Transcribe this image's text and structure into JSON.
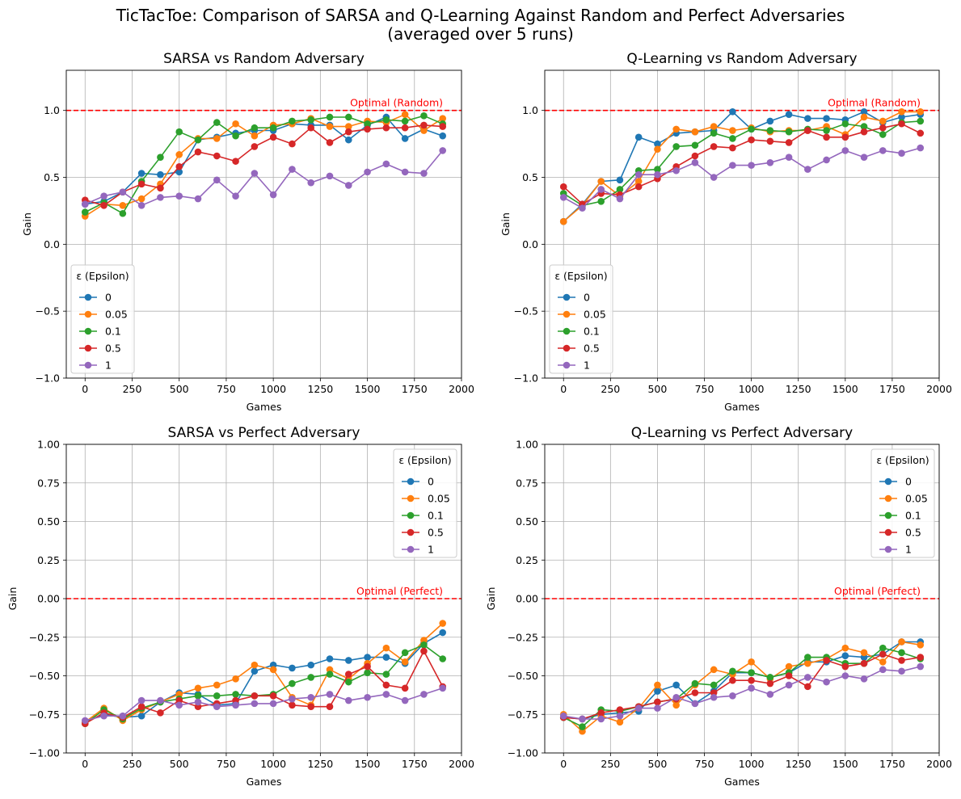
{
  "figure": {
    "title_line1": "TicTacToe: Comparison of SARSA and Q-Learning Against Random and Perfect Adversaries",
    "title_line2": "(averaged over 5 runs)"
  },
  "colors": {
    "series": [
      "#1f77b4",
      "#ff7f0e",
      "#2ca02c",
      "#d62728",
      "#9467bd"
    ],
    "optimal": "#ff0000",
    "grid": "#b0b0b0"
  },
  "chart_data": [
    {
      "type": "line",
      "title": "SARSA vs Random Adversary",
      "xlabel": "Games",
      "ylabel": "Gain",
      "xlim": [
        -100,
        2000
      ],
      "ylim": [
        -1.0,
        1.3
      ],
      "xticks": [
        0,
        250,
        500,
        750,
        1000,
        1250,
        1500,
        1750,
        2000
      ],
      "xtick_labels": [
        "0",
        "250",
        "500",
        "750",
        "1000",
        "1250",
        "1500",
        "1750",
        "2000"
      ],
      "yticks": [
        -1.0,
        -0.5,
        0.0,
        0.5,
        1.0
      ],
      "ytick_labels": [
        "−1.0",
        "−0.5",
        "0.0",
        "0.5",
        "1.0"
      ],
      "grid": true,
      "optimal_line": {
        "y": 1.0,
        "label": "Optimal (Random)"
      },
      "legend": {
        "title": "ε (Epsilon)",
        "placement": "lower-left"
      },
      "x": [
        0,
        100,
        200,
        300,
        400,
        500,
        600,
        700,
        800,
        900,
        1000,
        1100,
        1200,
        1300,
        1400,
        1500,
        1600,
        1700,
        1800,
        1900
      ],
      "series": [
        {
          "name": "0",
          "values": [
            0.3,
            0.32,
            0.39,
            0.53,
            0.52,
            0.54,
            0.78,
            0.8,
            0.83,
            0.85,
            0.85,
            0.9,
            0.89,
            0.89,
            0.78,
            0.89,
            0.95,
            0.79,
            0.86,
            0.81
          ]
        },
        {
          "name": "0.05",
          "values": [
            0.21,
            0.3,
            0.29,
            0.34,
            0.45,
            0.67,
            0.79,
            0.79,
            0.9,
            0.81,
            0.89,
            0.9,
            0.94,
            0.88,
            0.88,
            0.92,
            0.91,
            0.97,
            0.85,
            0.94
          ]
        },
        {
          "name": "0.1",
          "values": [
            0.24,
            0.31,
            0.23,
            0.47,
            0.65,
            0.84,
            0.78,
            0.91,
            0.81,
            0.87,
            0.87,
            0.92,
            0.93,
            0.95,
            0.95,
            0.9,
            0.93,
            0.92,
            0.96,
            0.9
          ]
        },
        {
          "name": "0.5",
          "values": [
            0.33,
            0.29,
            0.39,
            0.45,
            0.42,
            0.58,
            0.69,
            0.66,
            0.62,
            0.73,
            0.8,
            0.75,
            0.87,
            0.76,
            0.84,
            0.86,
            0.87,
            0.87,
            0.89,
            0.88
          ]
        },
        {
          "name": "1",
          "values": [
            0.3,
            0.36,
            0.39,
            0.29,
            0.35,
            0.36,
            0.34,
            0.48,
            0.36,
            0.53,
            0.37,
            0.56,
            0.46,
            0.51,
            0.44,
            0.54,
            0.6,
            0.54,
            0.53,
            0.7
          ]
        }
      ]
    },
    {
      "type": "line",
      "title": "Q-Learning vs Random Adversary",
      "xlabel": "Games",
      "ylabel": "Gain",
      "xlim": [
        -100,
        2000
      ],
      "ylim": [
        -1.0,
        1.3
      ],
      "xticks": [
        0,
        250,
        500,
        750,
        1000,
        1250,
        1500,
        1750,
        2000
      ],
      "xtick_labels": [
        "0",
        "250",
        "500",
        "750",
        "1000",
        "1250",
        "1500",
        "1750",
        "2000"
      ],
      "yticks": [
        -1.0,
        -0.5,
        0.0,
        0.5,
        1.0
      ],
      "ytick_labels": [
        "−1.0",
        "−0.5",
        "0.0",
        "0.5",
        "1.0"
      ],
      "grid": true,
      "optimal_line": {
        "y": 1.0,
        "label": "Optimal (Random)"
      },
      "legend": {
        "title": "ε (Epsilon)",
        "placement": "lower-left"
      },
      "x": [
        0,
        100,
        200,
        300,
        400,
        500,
        600,
        700,
        800,
        900,
        1000,
        1100,
        1200,
        1300,
        1400,
        1500,
        1600,
        1700,
        1800,
        1900
      ],
      "series": [
        {
          "name": "0",
          "values": [
            0.17,
            0.3,
            0.47,
            0.48,
            0.8,
            0.75,
            0.83,
            0.84,
            0.85,
            0.99,
            0.86,
            0.92,
            0.97,
            0.94,
            0.94,
            0.93,
            0.99,
            0.91,
            0.95,
            0.97
          ]
        },
        {
          "name": "0.05",
          "values": [
            0.17,
            0.29,
            0.47,
            0.36,
            0.47,
            0.71,
            0.86,
            0.84,
            0.88,
            0.85,
            0.87,
            0.84,
            0.85,
            0.85,
            0.88,
            0.82,
            0.95,
            0.92,
            0.99,
            0.99
          ]
        },
        {
          "name": "0.1",
          "values": [
            0.38,
            0.29,
            0.32,
            0.41,
            0.55,
            0.56,
            0.73,
            0.74,
            0.83,
            0.79,
            0.86,
            0.85,
            0.84,
            0.86,
            0.85,
            0.9,
            0.88,
            0.82,
            0.91,
            0.92
          ]
        },
        {
          "name": "0.5",
          "values": [
            0.43,
            0.3,
            0.38,
            0.37,
            0.43,
            0.49,
            0.58,
            0.66,
            0.73,
            0.72,
            0.78,
            0.77,
            0.76,
            0.85,
            0.8,
            0.8,
            0.84,
            0.87,
            0.9,
            0.83
          ]
        },
        {
          "name": "1",
          "values": [
            0.35,
            0.27,
            0.41,
            0.34,
            0.52,
            0.52,
            0.55,
            0.61,
            0.5,
            0.59,
            0.59,
            0.61,
            0.65,
            0.56,
            0.63,
            0.7,
            0.65,
            0.7,
            0.68,
            0.72
          ]
        }
      ]
    },
    {
      "type": "line",
      "title": "SARSA vs Perfect Adversary",
      "xlabel": "Games",
      "ylabel": "Gain",
      "xlim": [
        -100,
        2000
      ],
      "ylim": [
        -1.0,
        1.0
      ],
      "xticks": [
        0,
        250,
        500,
        750,
        1000,
        1250,
        1500,
        1750,
        2000
      ],
      "xtick_labels": [
        "0",
        "250",
        "500",
        "750",
        "1000",
        "1250",
        "1500",
        "1750",
        "2000"
      ],
      "yticks": [
        -1.0,
        -0.75,
        -0.5,
        -0.25,
        0.0,
        0.25,
        0.5,
        0.75,
        1.0
      ],
      "ytick_labels": [
        "−1.00",
        "−0.75",
        "−0.50",
        "−0.25",
        "0.00",
        "0.25",
        "0.50",
        "0.75",
        "1.00"
      ],
      "grid": true,
      "optimal_line": {
        "y": 0.0,
        "label": "Optimal (Perfect)"
      },
      "legend": {
        "title": "ε (Epsilon)",
        "placement": "upper-right"
      },
      "x": [
        0,
        100,
        200,
        300,
        400,
        500,
        600,
        700,
        800,
        900,
        1000,
        1100,
        1200,
        1300,
        1400,
        1500,
        1600,
        1700,
        1800,
        1900
      ],
      "series": [
        {
          "name": "0",
          "values": [
            -0.8,
            -0.75,
            -0.77,
            -0.76,
            -0.67,
            -0.61,
            -0.62,
            -0.69,
            -0.68,
            -0.47,
            -0.43,
            -0.45,
            -0.43,
            -0.39,
            -0.4,
            -0.38,
            -0.38,
            -0.42,
            -0.29,
            -0.22
          ]
        },
        {
          "name": "0.05",
          "values": [
            -0.8,
            -0.71,
            -0.79,
            -0.72,
            -0.67,
            -0.62,
            -0.58,
            -0.56,
            -0.52,
            -0.43,
            -0.46,
            -0.64,
            -0.69,
            -0.46,
            -0.52,
            -0.42,
            -0.32,
            -0.41,
            -0.27,
            -0.16
          ]
        },
        {
          "name": "0.1",
          "values": [
            -0.81,
            -0.72,
            -0.78,
            -0.71,
            -0.67,
            -0.65,
            -0.63,
            -0.63,
            -0.62,
            -0.63,
            -0.62,
            -0.55,
            -0.51,
            -0.49,
            -0.54,
            -0.48,
            -0.49,
            -0.35,
            -0.3,
            -0.39
          ]
        },
        {
          "name": "0.5",
          "values": [
            -0.81,
            -0.74,
            -0.77,
            -0.7,
            -0.74,
            -0.66,
            -0.7,
            -0.68,
            -0.66,
            -0.63,
            -0.63,
            -0.69,
            -0.7,
            -0.7,
            -0.49,
            -0.44,
            -0.56,
            -0.58,
            -0.34,
            -0.57
          ]
        },
        {
          "name": "1",
          "values": [
            -0.79,
            -0.76,
            -0.76,
            -0.66,
            -0.66,
            -0.69,
            -0.67,
            -0.7,
            -0.69,
            -0.68,
            -0.68,
            -0.65,
            -0.64,
            -0.62,
            -0.66,
            -0.64,
            -0.62,
            -0.66,
            -0.62,
            -0.58
          ]
        }
      ]
    },
    {
      "type": "line",
      "title": "Q-Learning vs Perfect Adversary",
      "xlabel": "Games",
      "ylabel": "Gain",
      "xlim": [
        -100,
        2000
      ],
      "ylim": [
        -1.0,
        1.0
      ],
      "xticks": [
        0,
        250,
        500,
        750,
        1000,
        1250,
        1500,
        1750,
        2000
      ],
      "xtick_labels": [
        "0",
        "250",
        "500",
        "750",
        "1000",
        "1250",
        "1500",
        "1750",
        "2000"
      ],
      "yticks": [
        -1.0,
        -0.75,
        -0.5,
        -0.25,
        0.0,
        0.25,
        0.5,
        0.75,
        1.0
      ],
      "ytick_labels": [
        "−1.00",
        "−0.75",
        "−0.50",
        "−0.25",
        "0.00",
        "0.25",
        "0.50",
        "0.75",
        "1.00"
      ],
      "grid": true,
      "optimal_line": {
        "y": 0.0,
        "label": "Optimal (Perfect)"
      },
      "legend": {
        "title": "ε (Epsilon)",
        "placement": "upper-right"
      },
      "x": [
        0,
        100,
        200,
        300,
        400,
        500,
        600,
        700,
        800,
        900,
        1000,
        1100,
        1200,
        1300,
        1400,
        1500,
        1600,
        1700,
        1800,
        1900
      ],
      "series": [
        {
          "name": "0",
          "values": [
            -0.77,
            -0.78,
            -0.75,
            -0.74,
            -0.73,
            -0.6,
            -0.56,
            -0.68,
            -0.6,
            -0.48,
            -0.48,
            -0.51,
            -0.48,
            -0.41,
            -0.41,
            -0.37,
            -0.38,
            -0.36,
            -0.28,
            -0.28
          ]
        },
        {
          "name": "0.05",
          "values": [
            -0.75,
            -0.86,
            -0.76,
            -0.8,
            -0.71,
            -0.56,
            -0.69,
            -0.56,
            -0.46,
            -0.49,
            -0.41,
            -0.52,
            -0.44,
            -0.42,
            -0.39,
            -0.32,
            -0.35,
            -0.41,
            -0.28,
            -0.3
          ]
        },
        {
          "name": "0.1",
          "values": [
            -0.77,
            -0.83,
            -0.72,
            -0.73,
            -0.7,
            -0.67,
            -0.65,
            -0.55,
            -0.56,
            -0.47,
            -0.48,
            -0.51,
            -0.48,
            -0.38,
            -0.38,
            -0.42,
            -0.42,
            -0.32,
            -0.35,
            -0.39
          ]
        },
        {
          "name": "0.5",
          "values": [
            -0.77,
            -0.78,
            -0.74,
            -0.72,
            -0.7,
            -0.67,
            -0.65,
            -0.61,
            -0.61,
            -0.53,
            -0.53,
            -0.55,
            -0.5,
            -0.57,
            -0.4,
            -0.44,
            -0.42,
            -0.36,
            -0.4,
            -0.38
          ]
        },
        {
          "name": "1",
          "values": [
            -0.76,
            -0.78,
            -0.78,
            -0.76,
            -0.71,
            -0.71,
            -0.64,
            -0.68,
            -0.64,
            -0.63,
            -0.58,
            -0.62,
            -0.56,
            -0.51,
            -0.54,
            -0.5,
            -0.52,
            -0.46,
            -0.47,
            -0.44
          ]
        }
      ]
    }
  ]
}
